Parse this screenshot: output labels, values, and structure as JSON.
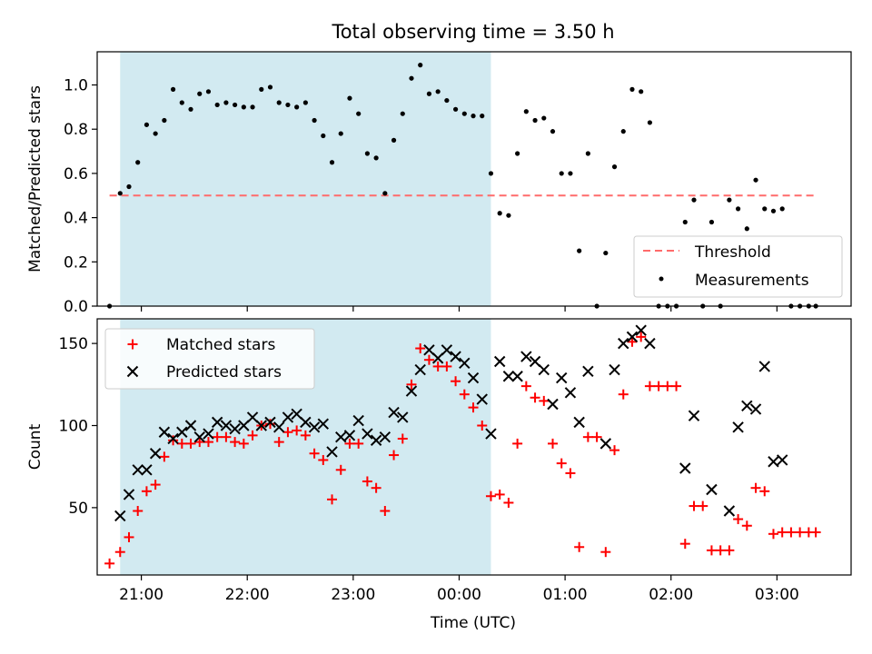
{
  "title": "Total observing time = 3.50 h",
  "x_axis_label": "Time (UTC)",
  "x_ticks": [
    {
      "t": 21.0,
      "label": "21:00"
    },
    {
      "t": 22.0,
      "label": "22:00"
    },
    {
      "t": 23.0,
      "label": "23:00"
    },
    {
      "t": 24.0,
      "label": "00:00"
    },
    {
      "t": 25.0,
      "label": "01:00"
    },
    {
      "t": 26.0,
      "label": "02:00"
    },
    {
      "t": 27.0,
      "label": "03:00"
    }
  ],
  "colors": {
    "shade": "#add8e6",
    "threshold": "#ff6b6b",
    "measurements": "#000000",
    "matched": "#ff0000",
    "predicted": "#000000"
  },
  "chart_data": [
    {
      "type": "scatter",
      "ylabel": "Matched/Predicted stars",
      "xlim": [
        "20:35",
        "03:42"
      ],
      "ylim": [
        0,
        1.15
      ],
      "y_ticks": [
        {
          "v": 0.0,
          "label": "0.0"
        },
        {
          "v": 0.2,
          "label": "0.2"
        },
        {
          "v": 0.4,
          "label": "0.4"
        },
        {
          "v": 0.6,
          "label": "0.6"
        },
        {
          "v": 0.8,
          "label": "0.8"
        },
        {
          "v": 1.0,
          "label": "1.0"
        }
      ],
      "shaded_interval": [
        "20:48",
        "00:18"
      ],
      "legend_position": "lower right",
      "threshold": {
        "name": "Threshold",
        "y": 0.5,
        "x_range": [
          "20:42",
          "03:22"
        ]
      },
      "series": [
        {
          "name": "Measurements",
          "marker": "dot",
          "points": [
            [
              "20:42",
              0.0
            ],
            [
              "20:48",
              0.51
            ],
            [
              "20:53",
              0.54
            ],
            [
              "20:58",
              0.65
            ],
            [
              "21:03",
              0.82
            ],
            [
              "21:08",
              0.78
            ],
            [
              "21:13",
              0.84
            ],
            [
              "21:18",
              0.98
            ],
            [
              "21:23",
              0.92
            ],
            [
              "21:28",
              0.89
            ],
            [
              "21:33",
              0.96
            ],
            [
              "21:38",
              0.97
            ],
            [
              "21:43",
              0.91
            ],
            [
              "21:48",
              0.92
            ],
            [
              "21:53",
              0.91
            ],
            [
              "21:58",
              0.9
            ],
            [
              "22:03",
              0.9
            ],
            [
              "22:08",
              0.98
            ],
            [
              "22:13",
              0.99
            ],
            [
              "22:18",
              0.92
            ],
            [
              "22:23",
              0.91
            ],
            [
              "22:28",
              0.9
            ],
            [
              "22:33",
              0.92
            ],
            [
              "22:38",
              0.84
            ],
            [
              "22:43",
              0.77
            ],
            [
              "22:48",
              0.65
            ],
            [
              "22:53",
              0.78
            ],
            [
              "22:58",
              0.94
            ],
            [
              "23:03",
              0.87
            ],
            [
              "23:08",
              0.69
            ],
            [
              "23:13",
              0.67
            ],
            [
              "23:18",
              0.51
            ],
            [
              "23:23",
              0.75
            ],
            [
              "23:28",
              0.87
            ],
            [
              "23:33",
              1.03
            ],
            [
              "23:38",
              1.09
            ],
            [
              "23:43",
              0.96
            ],
            [
              "23:48",
              0.97
            ],
            [
              "23:53",
              0.93
            ],
            [
              "23:58",
              0.89
            ],
            [
              "00:03",
              0.87
            ],
            [
              "00:08",
              0.86
            ],
            [
              "00:13",
              0.86
            ],
            [
              "00:18",
              0.6
            ],
            [
              "00:23",
              0.42
            ],
            [
              "00:28",
              0.41
            ],
            [
              "00:33",
              0.69
            ],
            [
              "00:38",
              0.88
            ],
            [
              "00:43",
              0.84
            ],
            [
              "00:48",
              0.85
            ],
            [
              "00:53",
              0.79
            ],
            [
              "00:58",
              0.6
            ],
            [
              "01:03",
              0.6
            ],
            [
              "01:08",
              0.25
            ],
            [
              "01:13",
              0.69
            ],
            [
              "01:18",
              0.0
            ],
            [
              "01:23",
              0.24
            ],
            [
              "01:28",
              0.63
            ],
            [
              "01:33",
              0.79
            ],
            [
              "01:38",
              0.98
            ],
            [
              "01:43",
              0.97
            ],
            [
              "01:48",
              0.83
            ],
            [
              "01:53",
              0.0
            ],
            [
              "01:58",
              0.0
            ],
            [
              "02:03",
              0.0
            ],
            [
              "02:08",
              0.38
            ],
            [
              "02:13",
              0.48
            ],
            [
              "02:18",
              0.0
            ],
            [
              "02:23",
              0.38
            ],
            [
              "02:28",
              0.0
            ],
            [
              "02:33",
              0.48
            ],
            [
              "02:38",
              0.44
            ],
            [
              "02:43",
              0.35
            ],
            [
              "02:48",
              0.57
            ],
            [
              "02:53",
              0.44
            ],
            [
              "02:58",
              0.43
            ],
            [
              "03:03",
              0.44
            ],
            [
              "03:08",
              0.0
            ],
            [
              "03:13",
              0.0
            ],
            [
              "03:18",
              0.0
            ],
            [
              "03:22",
              0.0
            ]
          ]
        }
      ]
    },
    {
      "type": "scatter",
      "ylabel": "Count",
      "xlabel": "Time (UTC)",
      "xlim": [
        "20:35",
        "03:42"
      ],
      "ylim": [
        9,
        165
      ],
      "y_ticks": [
        {
          "v": 50,
          "label": "50"
        },
        {
          "v": 100,
          "label": "100"
        },
        {
          "v": 150,
          "label": "150"
        }
      ],
      "shaded_interval": [
        "20:48",
        "00:18"
      ],
      "legend_position": "upper left",
      "series": [
        {
          "name": "Matched stars",
          "marker": "plus",
          "points": [
            [
              "20:42",
              16
            ],
            [
              "20:48",
              23
            ],
            [
              "20:53",
              32
            ],
            [
              "20:58",
              48
            ],
            [
              "21:03",
              60
            ],
            [
              "21:08",
              64
            ],
            [
              "21:13",
              81
            ],
            [
              "21:18",
              91
            ],
            [
              "21:23",
              89
            ],
            [
              "21:28",
              89
            ],
            [
              "21:33",
              90
            ],
            [
              "21:38",
              90
            ],
            [
              "21:43",
              93
            ],
            [
              "21:48",
              93
            ],
            [
              "21:53",
              90
            ],
            [
              "21:58",
              89
            ],
            [
              "22:03",
              94
            ],
            [
              "22:08",
              100
            ],
            [
              "22:13",
              101
            ],
            [
              "22:18",
              90
            ],
            [
              "22:23",
              96
            ],
            [
              "22:28",
              97
            ],
            [
              "22:33",
              94
            ],
            [
              "22:38",
              83
            ],
            [
              "22:43",
              79
            ],
            [
              "22:48",
              55
            ],
            [
              "22:53",
              73
            ],
            [
              "22:58",
              89
            ],
            [
              "23:03",
              89
            ],
            [
              "23:08",
              66
            ],
            [
              "23:13",
              62
            ],
            [
              "23:18",
              48
            ],
            [
              "23:23",
              82
            ],
            [
              "23:28",
              92
            ],
            [
              "23:33",
              125
            ],
            [
              "23:38",
              147
            ],
            [
              "23:43",
              140
            ],
            [
              "23:48",
              136
            ],
            [
              "23:53",
              136
            ],
            [
              "23:58",
              127
            ],
            [
              "00:03",
              119
            ],
            [
              "00:08",
              111
            ],
            [
              "00:13",
              100
            ],
            [
              "00:18",
              57
            ],
            [
              "00:23",
              58
            ],
            [
              "00:28",
              53
            ],
            [
              "00:33",
              89
            ],
            [
              "00:38",
              124
            ],
            [
              "00:43",
              117
            ],
            [
              "00:48",
              115
            ],
            [
              "00:53",
              89
            ],
            [
              "00:58",
              77
            ],
            [
              "01:03",
              71
            ],
            [
              "01:08",
              26
            ],
            [
              "01:13",
              93
            ],
            [
              "01:18",
              93
            ],
            [
              "01:23",
              23
            ],
            [
              "01:28",
              85
            ],
            [
              "01:33",
              119
            ],
            [
              "01:38",
              151
            ],
            [
              "01:43",
              154
            ],
            [
              "01:48",
              124
            ],
            [
              "01:53",
              124
            ],
            [
              "01:58",
              124
            ],
            [
              "02:03",
              124
            ],
            [
              "02:08",
              28
            ],
            [
              "02:13",
              51
            ],
            [
              "02:18",
              51
            ],
            [
              "02:23",
              24
            ],
            [
              "02:28",
              24
            ],
            [
              "02:33",
              24
            ],
            [
              "02:38",
              43
            ],
            [
              "02:43",
              39
            ],
            [
              "02:48",
              62
            ],
            [
              "02:53",
              60
            ],
            [
              "02:58",
              34
            ],
            [
              "03:03",
              35
            ],
            [
              "03:08",
              35
            ],
            [
              "03:13",
              35
            ],
            [
              "03:18",
              35
            ],
            [
              "03:22",
              35
            ]
          ]
        },
        {
          "name": "Predicted stars",
          "marker": "x",
          "points": [
            [
              "20:48",
              45
            ],
            [
              "20:53",
              58
            ],
            [
              "20:58",
              73
            ],
            [
              "21:03",
              73
            ],
            [
              "21:08",
              83
            ],
            [
              "21:13",
              96
            ],
            [
              "21:18",
              92
            ],
            [
              "21:23",
              96
            ],
            [
              "21:28",
              100
            ],
            [
              "21:33",
              93
            ],
            [
              "21:38",
              95
            ],
            [
              "21:43",
              102
            ],
            [
              "21:48",
              100
            ],
            [
              "21:53",
              98
            ],
            [
              "21:58",
              100
            ],
            [
              "22:03",
              105
            ],
            [
              "22:08",
              100
            ],
            [
              "22:13",
              102
            ],
            [
              "22:18",
              99
            ],
            [
              "22:23",
              105
            ],
            [
              "22:28",
              107
            ],
            [
              "22:33",
              102
            ],
            [
              "22:38",
              99
            ],
            [
              "22:43",
              101
            ],
            [
              "22:48",
              84
            ],
            [
              "22:53",
              93
            ],
            [
              "22:58",
              94
            ],
            [
              "23:03",
              103
            ],
            [
              "23:08",
              95
            ],
            [
              "23:13",
              91
            ],
            [
              "23:18",
              93
            ],
            [
              "23:23",
              108
            ],
            [
              "23:28",
              105
            ],
            [
              "23:33",
              121
            ],
            [
              "23:38",
              134
            ],
            [
              "23:43",
              146
            ],
            [
              "23:48",
              141
            ],
            [
              "23:53",
              146
            ],
            [
              "23:58",
              142
            ],
            [
              "00:03",
              138
            ],
            [
              "00:08",
              129
            ],
            [
              "00:13",
              116
            ],
            [
              "00:18",
              95
            ],
            [
              "00:23",
              139
            ],
            [
              "00:28",
              130
            ],
            [
              "00:33",
              130
            ],
            [
              "00:38",
              142
            ],
            [
              "00:43",
              139
            ],
            [
              "00:48",
              134
            ],
            [
              "00:53",
              113
            ],
            [
              "00:58",
              129
            ],
            [
              "01:03",
              120
            ],
            [
              "01:08",
              102
            ],
            [
              "01:13",
              133
            ],
            [
              "01:23",
              89
            ],
            [
              "01:28",
              134
            ],
            [
              "01:33",
              150
            ],
            [
              "01:38",
              154
            ],
            [
              "01:43",
              158
            ],
            [
              "01:48",
              150
            ],
            [
              "02:08",
              74
            ],
            [
              "02:13",
              106
            ],
            [
              "02:23",
              61
            ],
            [
              "02:33",
              48
            ],
            [
              "02:38",
              99
            ],
            [
              "02:43",
              112
            ],
            [
              "02:48",
              110
            ],
            [
              "02:53",
              136
            ],
            [
              "02:58",
              78
            ],
            [
              "03:03",
              79
            ]
          ]
        }
      ]
    }
  ]
}
